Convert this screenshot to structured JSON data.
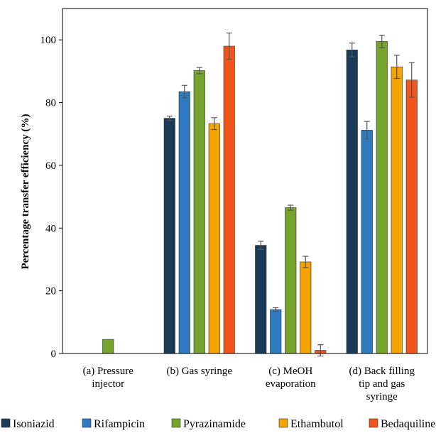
{
  "chart_data": {
    "type": "bar",
    "title": "",
    "xlabel": "",
    "ylabel": "Percentage transfer efficiency (%)",
    "ylim": [
      0,
      110
    ],
    "yticks": [
      "0",
      "20",
      "40",
      "60",
      "80",
      "100"
    ],
    "grid": false,
    "legend_position": "bottom",
    "categories": [
      [
        "(a) Pressure",
        "injector"
      ],
      [
        "(b) Gas syringe"
      ],
      [
        "(c) MeOH",
        "evaporation"
      ],
      [
        "(d) Back filling",
        "tip and gas",
        "syringe"
      ]
    ],
    "series": [
      {
        "name": "Isoniazid",
        "color": "#1b3a57",
        "values": [
          null,
          75.0,
          34.5,
          96.8
        ],
        "errors": [
          null,
          0.7,
          1.3,
          2.2
        ]
      },
      {
        "name": "Rifampicin",
        "color": "#2e7bbf",
        "values": [
          null,
          83.5,
          14.0,
          71.2
        ],
        "errors": [
          null,
          2.0,
          0.6,
          2.8
        ]
      },
      {
        "name": "Pyrazinamide",
        "color": "#76a22e",
        "values": [
          4.5,
          90.2,
          46.5,
          99.5
        ],
        "errors": [
          null,
          1.0,
          0.8,
          2.0
        ]
      },
      {
        "name": "Ethambutol",
        "color": "#f4a300",
        "values": [
          null,
          73.3,
          29.2,
          91.4
        ],
        "errors": [
          null,
          1.9,
          1.8,
          3.7
        ]
      },
      {
        "name": "Bedaquiline",
        "color": "#f0561c",
        "values": [
          null,
          98.0,
          1.0,
          87.2
        ],
        "errors": [
          null,
          4.2,
          1.8,
          5.5
        ]
      }
    ]
  }
}
